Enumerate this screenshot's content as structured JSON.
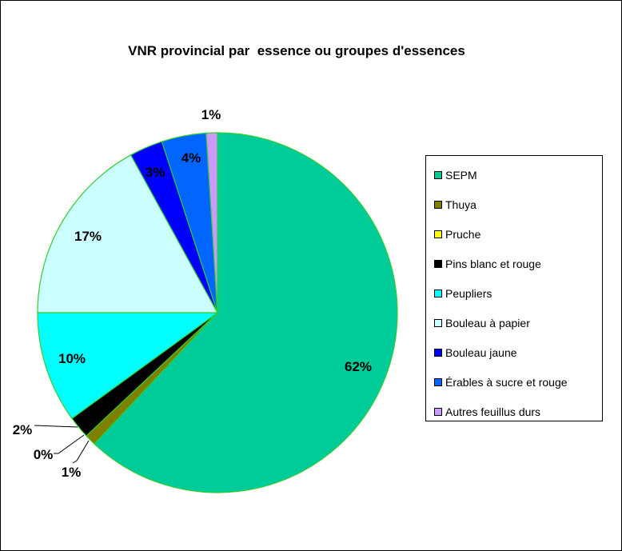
{
  "chart_data": {
    "type": "pie",
    "title": "VNR provincial par  essence ou groupes d'essences",
    "legend_position": "right",
    "slices": [
      {
        "name": "SEPM",
        "value": 62,
        "label": "62%",
        "color": "#00CC99"
      },
      {
        "name": "Thuya",
        "value": 1,
        "label": "1%",
        "color": "#808000"
      },
      {
        "name": "Pruche",
        "value": 0,
        "label": "0%",
        "color": "#FFFF00"
      },
      {
        "name": "Pins blanc et rouge",
        "value": 2,
        "label": "2%",
        "color": "#000000"
      },
      {
        "name": "Peupliers",
        "value": 10,
        "label": "10%",
        "color": "#00FFFF"
      },
      {
        "name": "Bouleau à papier",
        "value": 17,
        "label": "17%",
        "color": "#CCFFFF"
      },
      {
        "name": "Bouleau jaune",
        "value": 3,
        "label": "3%",
        "color": "#0000FF"
      },
      {
        "name": "Érables à sucre et rouge",
        "value": 4,
        "label": "4%",
        "color": "#0066FF"
      },
      {
        "name": "Autres feuillus durs",
        "value": 1,
        "label": "1%",
        "color": "#CC99FF"
      }
    ]
  }
}
